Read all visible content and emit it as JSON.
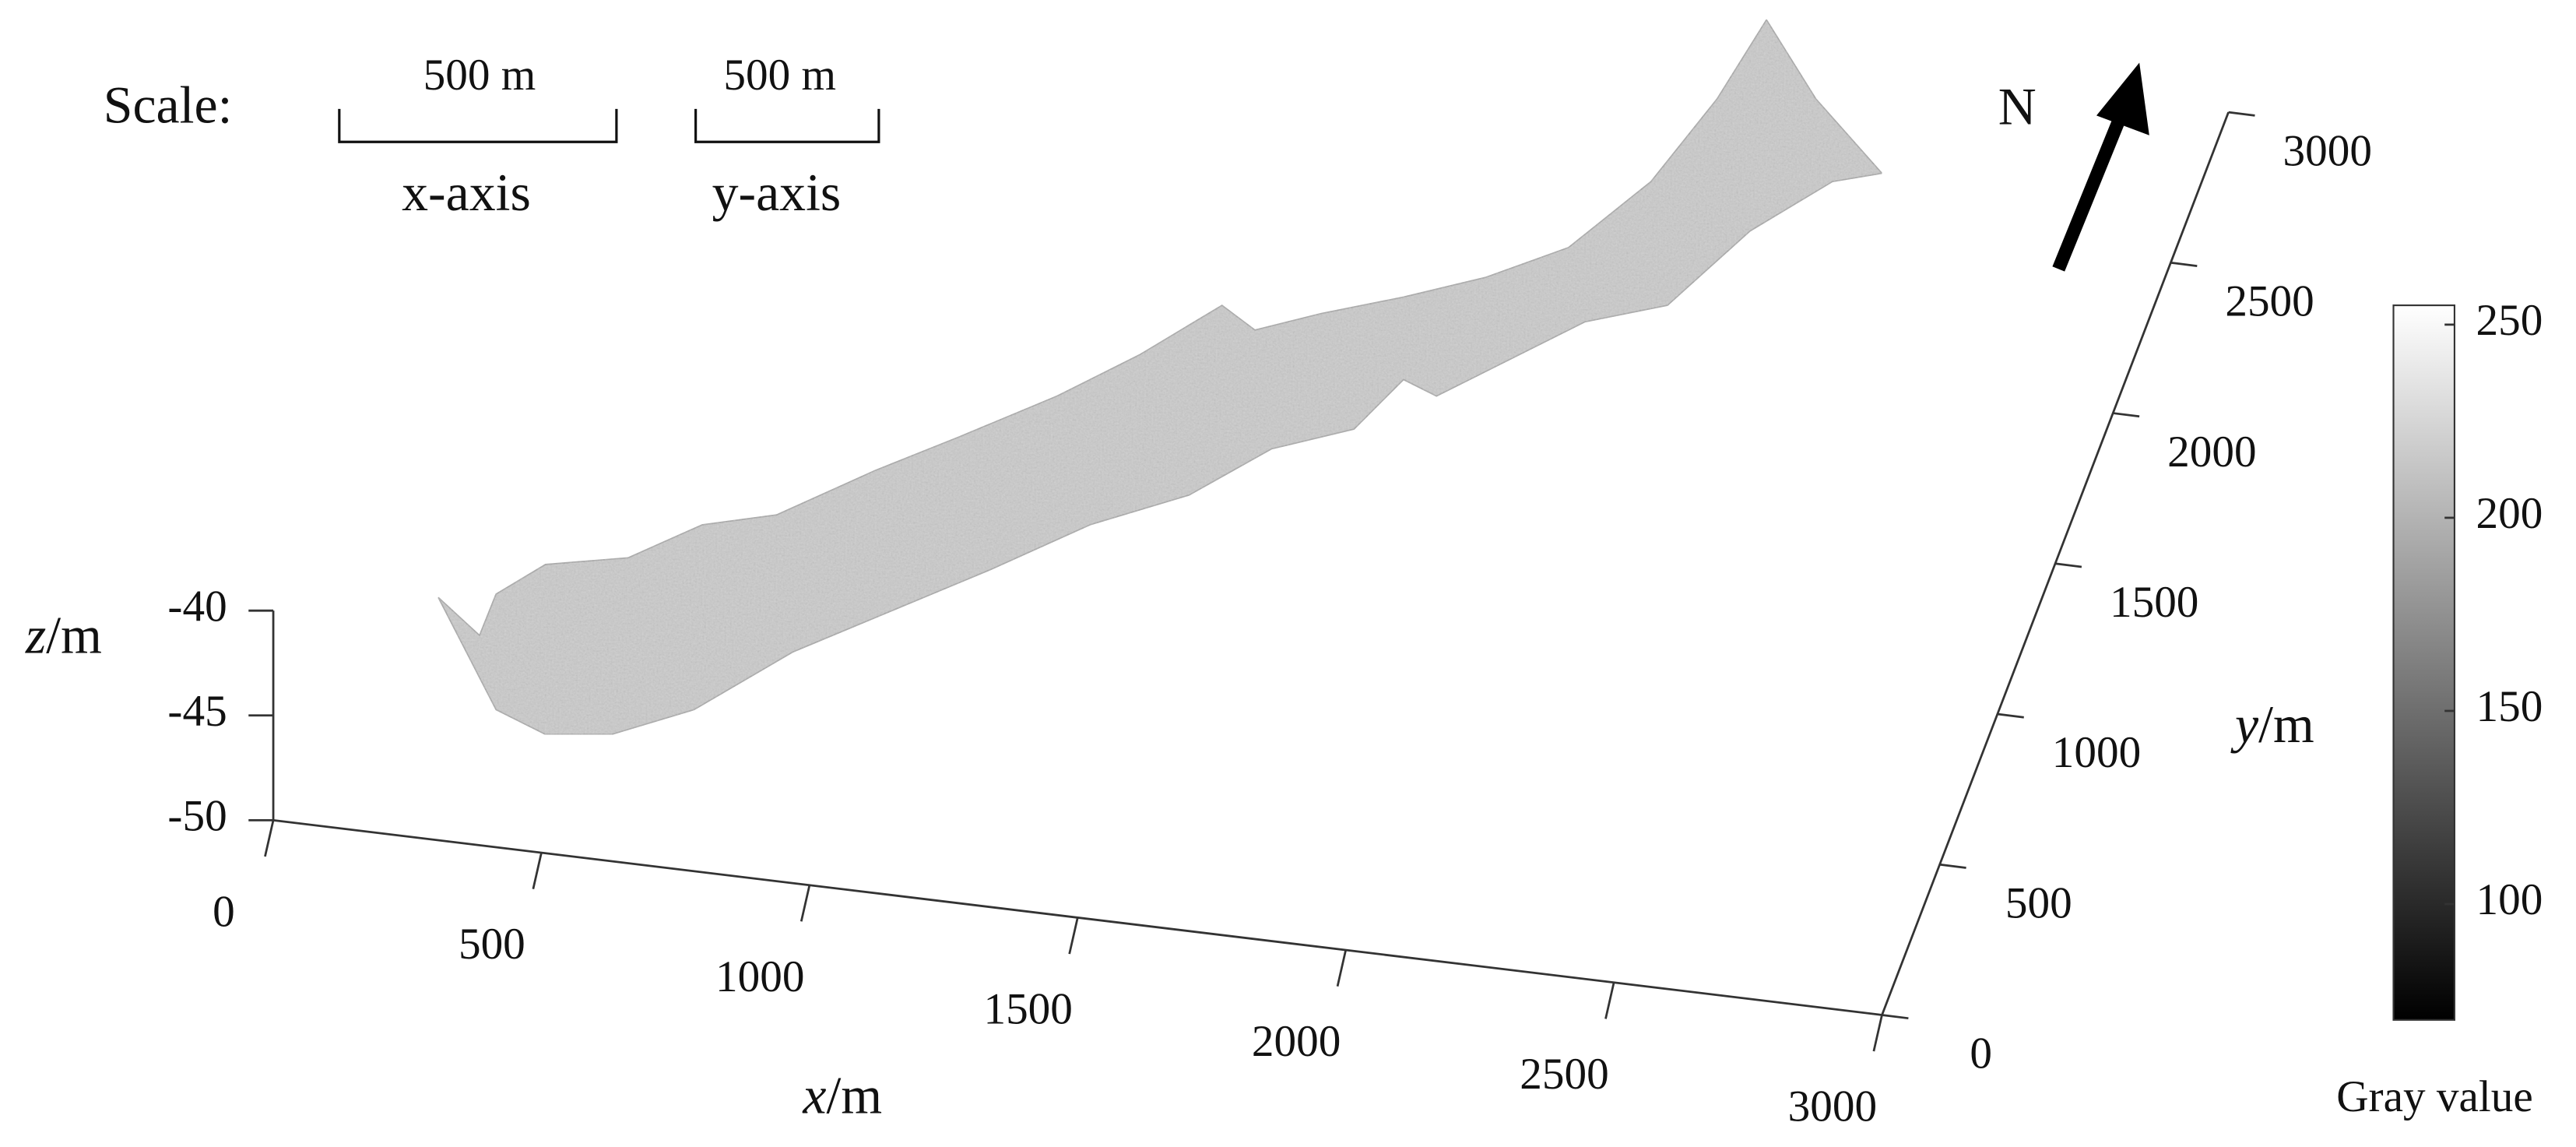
{
  "chart_data": {
    "type": "surface3d",
    "scale_label": "Scale:",
    "scale_bars": [
      {
        "length_label": "500 m",
        "axis_label": "x-axis"
      },
      {
        "length_label": "500 m",
        "axis_label": "y-axis"
      }
    ],
    "north_label": "N",
    "xlabel": "x/m",
    "ylabel": "y/m",
    "zlabel": "z/m",
    "xlim": [
      0,
      3000
    ],
    "xticks": [
      0,
      500,
      1000,
      1500,
      2000,
      2500,
      3000
    ],
    "ylim": [
      0,
      3000
    ],
    "yticks": [
      0,
      500,
      1000,
      1500,
      2000,
      2500,
      3000
    ],
    "zlim": [
      -50,
      -40
    ],
    "zticks": [
      -50,
      -45,
      -40
    ],
    "colormap": "gray",
    "colorbar_label": "Gray value",
    "clim": [
      70,
      255
    ],
    "cticks": [
      100,
      150,
      200,
      250
    ]
  }
}
